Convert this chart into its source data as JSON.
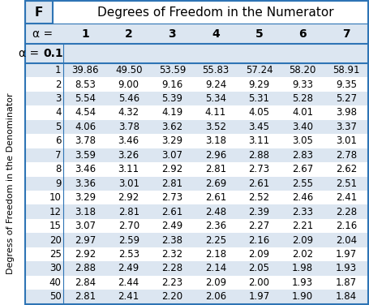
{
  "title": "Degrees of Freedom in the Numerator",
  "f_label": "F",
  "alpha_label": "α = ",
  "alpha_value": "0.1",
  "col_headers": [
    "1",
    "2",
    "3",
    "4",
    "5",
    "6",
    "7"
  ],
  "row_headers": [
    "1",
    "2",
    "3",
    "4",
    "5",
    "6",
    "7",
    "8",
    "9",
    "10",
    "12",
    "15",
    "20",
    "25",
    "30",
    "40",
    "50"
  ],
  "y_axis_label": "Degress of Freedom in the Denominator",
  "table_data": [
    [
      39.86,
      49.5,
      53.59,
      55.83,
      57.24,
      58.2,
      58.91
    ],
    [
      8.53,
      9.0,
      9.16,
      9.24,
      9.29,
      9.33,
      9.35
    ],
    [
      5.54,
      5.46,
      5.39,
      5.34,
      5.31,
      5.28,
      5.27
    ],
    [
      4.54,
      4.32,
      4.19,
      4.11,
      4.05,
      4.01,
      3.98
    ],
    [
      4.06,
      3.78,
      3.62,
      3.52,
      3.45,
      3.4,
      3.37
    ],
    [
      3.78,
      3.46,
      3.29,
      3.18,
      3.11,
      3.05,
      3.01
    ],
    [
      3.59,
      3.26,
      3.07,
      2.96,
      2.88,
      2.83,
      2.78
    ],
    [
      3.46,
      3.11,
      2.92,
      2.81,
      2.73,
      2.67,
      2.62
    ],
    [
      3.36,
      3.01,
      2.81,
      2.69,
      2.61,
      2.55,
      2.51
    ],
    [
      3.29,
      2.92,
      2.73,
      2.61,
      2.52,
      2.46,
      2.41
    ],
    [
      3.18,
      2.81,
      2.61,
      2.48,
      2.39,
      2.33,
      2.28
    ],
    [
      3.07,
      2.7,
      2.49,
      2.36,
      2.27,
      2.21,
      2.16
    ],
    [
      2.97,
      2.59,
      2.38,
      2.25,
      2.16,
      2.09,
      2.04
    ],
    [
      2.92,
      2.53,
      2.32,
      2.18,
      2.09,
      2.02,
      1.97
    ],
    [
      2.88,
      2.49,
      2.28,
      2.14,
      2.05,
      1.98,
      1.93
    ],
    [
      2.84,
      2.44,
      2.23,
      2.09,
      2.0,
      1.93,
      1.87
    ],
    [
      2.81,
      2.41,
      2.2,
      2.06,
      1.97,
      1.9,
      1.84
    ]
  ],
  "color_odd_row": "#dce6f1",
  "color_even_row": "#ffffff",
  "color_header_bg": "#dce6f1",
  "color_alpha_bg": "#dce6f1",
  "color_f_bg": "#dce6f1",
  "color_border": "#2e74b5",
  "color_text": "#000000",
  "font_size_title": 11,
  "font_size_header": 10,
  "font_size_data": 8.5,
  "font_size_alpha": 10,
  "font_size_ylabel": 8
}
